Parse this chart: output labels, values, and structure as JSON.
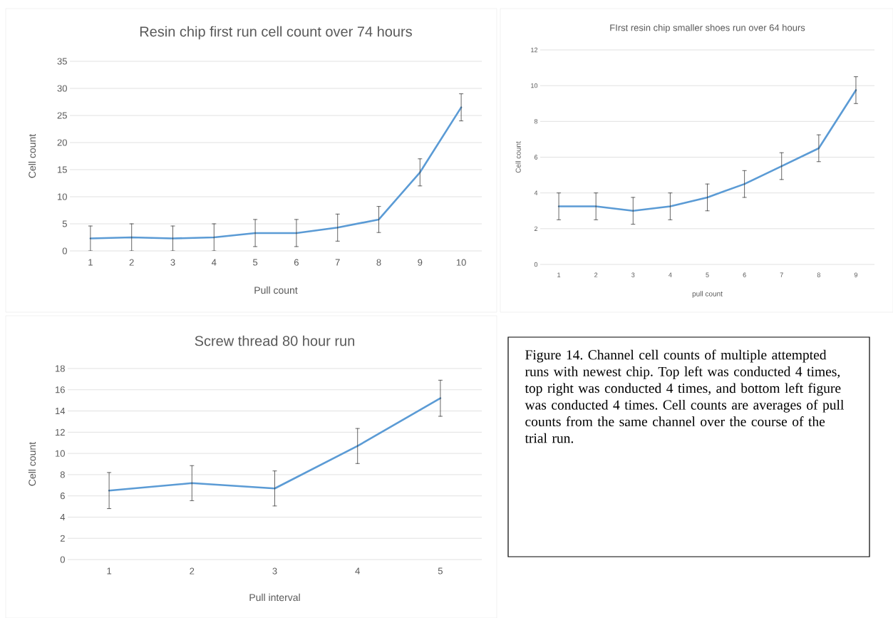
{
  "chart_data": [
    {
      "type": "line",
      "title": "Resin chip first run cell count over 74 hours",
      "xlabel": "Pull count",
      "ylabel": "Cell count",
      "categories": [
        "1",
        "2",
        "3",
        "4",
        "5",
        "6",
        "7",
        "8",
        "9",
        "10"
      ],
      "values": [
        2.3,
        2.5,
        2.3,
        2.5,
        3.3,
        3.3,
        4.3,
        5.8,
        14.5,
        26.5
      ],
      "errors": [
        2.3,
        2.5,
        2.3,
        2.5,
        2.5,
        2.5,
        2.5,
        2.4,
        2.5,
        2.5
      ],
      "color": "#5b9bd5",
      "ylim": [
        0,
        35
      ],
      "yticks": [
        0,
        5,
        10,
        15,
        20,
        25,
        30,
        35
      ],
      "grid": "y",
      "marker": "none"
    },
    {
      "type": "line",
      "title": "FIrst resin chip smaller shoes run over 64 hours",
      "xlabel": "pull count",
      "ylabel": "Cell count",
      "categories": [
        "1",
        "2",
        "3",
        "4",
        "5",
        "6",
        "7",
        "8",
        "9"
      ],
      "values": [
        3.25,
        3.25,
        3.0,
        3.25,
        3.75,
        4.5,
        5.5,
        6.5,
        9.75
      ],
      "errors": [
        0.75,
        0.75,
        0.75,
        0.75,
        0.75,
        0.75,
        0.75,
        0.75,
        0.75
      ],
      "color": "#5b9bd5",
      "ylim": [
        0,
        12
      ],
      "yticks": [
        0,
        2,
        4,
        6,
        8,
        10,
        12
      ],
      "grid": "y",
      "marker": "none"
    },
    {
      "type": "line",
      "title": "Screw thread 80 hour run",
      "xlabel": "Pull interval",
      "ylabel": "Cell count",
      "categories": [
        "1",
        "2",
        "3",
        "4",
        "5"
      ],
      "values": [
        6.5,
        7.2,
        6.7,
        10.7,
        15.2
      ],
      "errors": [
        1.7,
        1.65,
        1.65,
        1.65,
        1.7
      ],
      "color": "#5b9bd5",
      "ylim": [
        0,
        18
      ],
      "yticks": [
        0,
        2,
        4,
        6,
        8,
        10,
        12,
        14,
        16,
        18
      ],
      "grid": "y",
      "marker": "none"
    },
    {
      "type": "other",
      "annotations": [
        "Figure 14. Channel cell counts of multiple attempted runs with newest chip. Top left was conducted 4 times, top right was conducted 4 times, and bottom left figure was conducted 4 times. Cell counts are averages of pull counts from the same channel over the course of the trial run."
      ]
    }
  ]
}
